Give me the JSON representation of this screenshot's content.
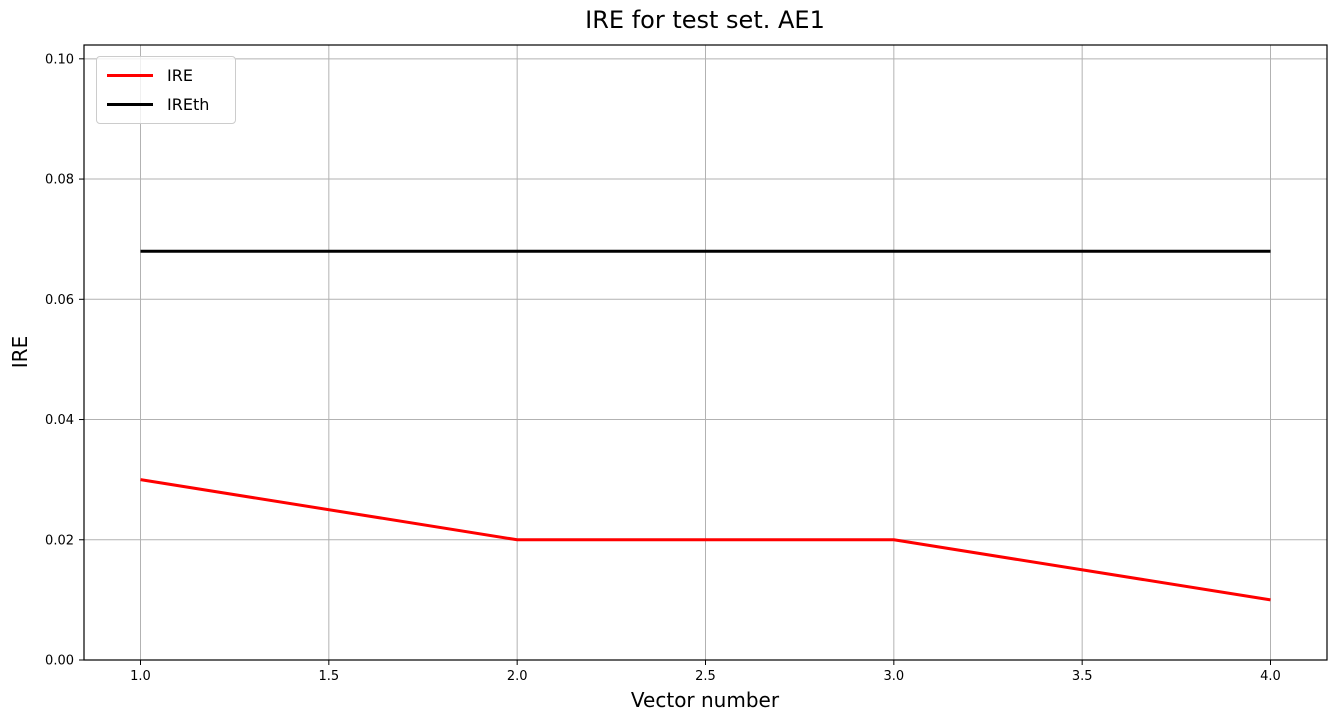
{
  "chart_data": {
    "type": "line",
    "title": "IRE for test set. AE1",
    "xlabel": "Vector number",
    "ylabel": "IRE",
    "x": [
      1,
      2,
      3,
      4
    ],
    "series": [
      {
        "name": "IRE",
        "values": [
          0.03,
          0.02,
          0.02,
          0.01
        ],
        "color": "#ff0000"
      },
      {
        "name": "IREth",
        "values": [
          0.068,
          0.068,
          0.068,
          0.068
        ],
        "color": "#000000"
      }
    ],
    "xlim": [
      0.85,
      4.15
    ],
    "ylim": [
      0,
      0.1023
    ],
    "xticks": {
      "values": [
        1.0,
        1.5,
        2.0,
        2.5,
        3.0,
        3.5,
        4.0
      ],
      "labels": [
        "1.0",
        "1.5",
        "2.0",
        "2.5",
        "3.0",
        "3.5",
        "4.0"
      ]
    },
    "yticks": {
      "values": [
        0.0,
        0.02,
        0.04,
        0.06,
        0.08,
        0.1
      ],
      "labels": [
        "0.00",
        "0.02",
        "0.04",
        "0.06",
        "0.08",
        "0.10"
      ]
    },
    "grid": true,
    "grid_color": "#b2b2b2",
    "spine_color": "#000000",
    "legend_position": "upper-left"
  }
}
